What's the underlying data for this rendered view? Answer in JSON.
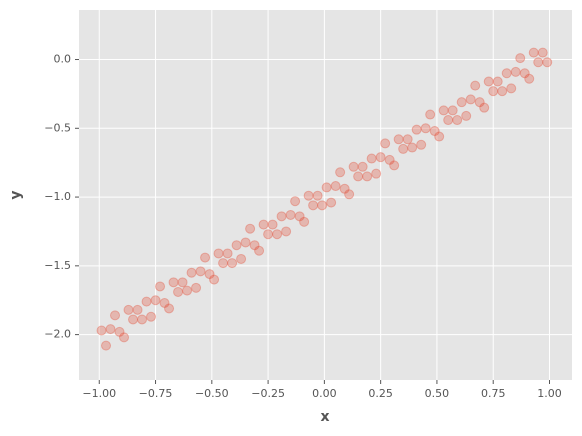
{
  "chart_data": {
    "type": "scatter",
    "x_label": "x",
    "y_label": "y",
    "color": "#e24a33",
    "grid": true,
    "xlim": [
      -1.09,
      1.1
    ],
    "ylim": [
      -2.33,
      0.36
    ],
    "xticks": [
      {
        "value": -1,
        "label": "−1.00"
      },
      {
        "value": -0.75,
        "label": "−0.75"
      },
      {
        "value": -0.5,
        "label": "−0.50"
      },
      {
        "value": -0.25,
        "label": "−0.25"
      },
      {
        "value": 0,
        "label": "0.00"
      },
      {
        "value": 0.25,
        "label": "0.25"
      },
      {
        "value": 0.5,
        "label": "0.50"
      },
      {
        "value": 0.75,
        "label": "0.75"
      },
      {
        "value": 1,
        "label": "1.00"
      }
    ],
    "yticks": [
      {
        "value": -2,
        "label": "−2.0"
      },
      {
        "value": -1.5,
        "label": "−1.5"
      },
      {
        "value": -1,
        "label": "−1.0"
      },
      {
        "value": -0.5,
        "label": "−0.5"
      },
      {
        "value": 0,
        "label": "0.0"
      }
    ],
    "x": [
      -0.99,
      -0.97,
      -0.95,
      -0.93,
      -0.91,
      -0.89,
      -0.87,
      -0.85,
      -0.83,
      -0.81,
      -0.79,
      -0.77,
      -0.75,
      -0.73,
      -0.71,
      -0.69,
      -0.67,
      -0.65,
      -0.63,
      -0.61,
      -0.59,
      -0.57,
      -0.55,
      -0.53,
      -0.51,
      -0.49,
      -0.47,
      -0.45,
      -0.43,
      -0.41,
      -0.39,
      -0.37,
      -0.35,
      -0.33,
      -0.31,
      -0.29,
      -0.27,
      -0.25,
      -0.23,
      -0.21,
      -0.19,
      -0.17,
      -0.15,
      -0.13,
      -0.11,
      -0.09,
      -0.07,
      -0.05,
      -0.03,
      -0.01,
      0.01,
      0.03,
      0.05,
      0.07,
      0.09,
      0.11,
      0.13,
      0.15,
      0.17,
      0.19,
      0.21,
      0.23,
      0.25,
      0.27,
      0.29,
      0.31,
      0.33,
      0.35,
      0.37,
      0.39,
      0.41,
      0.43,
      0.45,
      0.47,
      0.49,
      0.51,
      0.53,
      0.55,
      0.57,
      0.59,
      0.61,
      0.63,
      0.65,
      0.67,
      0.69,
      0.71,
      0.73,
      0.75,
      0.77,
      0.79,
      0.81,
      0.83,
      0.85,
      0.87,
      0.89,
      0.91,
      0.93,
      0.95,
      0.97,
      0.99
    ],
    "values": [
      -1.97,
      -2.08,
      -1.96,
      -1.86,
      -1.98,
      -2.02,
      -1.82,
      -1.89,
      -1.82,
      -1.89,
      -1.76,
      -1.87,
      -1.75,
      -1.65,
      -1.77,
      -1.81,
      -1.62,
      -1.69,
      -1.62,
      -1.68,
      -1.55,
      -1.66,
      -1.54,
      -1.44,
      -1.56,
      -1.6,
      -1.41,
      -1.48,
      -1.41,
      -1.48,
      -1.35,
      -1.45,
      -1.33,
      -1.23,
      -1.35,
      -1.39,
      -1.2,
      -1.27,
      -1.2,
      -1.27,
      -1.14,
      -1.25,
      -1.13,
      -1.03,
      -1.14,
      -1.18,
      -0.99,
      -1.06,
      -0.99,
      -1.06,
      -0.93,
      -1.04,
      -0.92,
      -0.82,
      -0.94,
      -0.98,
      -0.78,
      -0.85,
      -0.78,
      -0.85,
      -0.72,
      -0.83,
      -0.71,
      -0.61,
      -0.73,
      -0.77,
      -0.58,
      -0.65,
      -0.58,
      -0.64,
      -0.51,
      -0.62,
      -0.5,
      -0.4,
      -0.52,
      -0.56,
      -0.37,
      -0.44,
      -0.37,
      -0.44,
      -0.31,
      -0.41,
      -0.29,
      -0.19,
      -0.31,
      -0.35,
      -0.16,
      -0.23,
      -0.16,
      -0.23,
      -0.1,
      -0.21,
      -0.09,
      0.01,
      -0.1,
      -0.14,
      0.05,
      -0.02,
      0.05,
      -0.02
    ]
  }
}
